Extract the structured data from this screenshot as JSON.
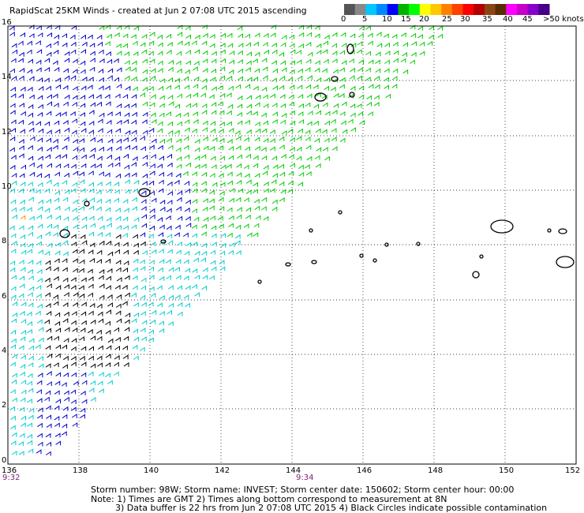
{
  "header": {
    "title": "RapidScat 25KM Winds - created at Jun  2 07:08 UTC 2015 ascending"
  },
  "legend": {
    "colors": [
      "#555555",
      "#888888",
      "#00c8ff",
      "#0088ff",
      "#0000ff",
      "#00b400",
      "#00ff00",
      "#ffff00",
      "#ffc800",
      "#ff8000",
      "#ff4000",
      "#ff0000",
      "#b40000",
      "#8b4513",
      "#5a2d00",
      "#ff00ff",
      "#c800c8",
      "#8800cc",
      "#440088"
    ],
    "labels": [
      "0",
      "5",
      "10",
      "15",
      "20",
      "25",
      "30",
      "35",
      "40",
      "45",
      ">50 knots"
    ]
  },
  "map": {
    "lat_labels": [
      "16",
      "14",
      "12",
      "10",
      "8",
      "6",
      "4",
      "2",
      "0"
    ],
    "lon_labels": [
      "136",
      "138",
      "140",
      "142",
      "144",
      "146",
      "148",
      "150",
      "152"
    ],
    "time_labels": [
      "9:32",
      "9:34"
    ],
    "wind_colors": {
      "calm": "#000000",
      "light": "#00cccc",
      "moderate": "#0000cc",
      "fresh": "#00cc00",
      "strong": "#ff8800"
    }
  },
  "footer": {
    "storm_info": "Storm number: 98W;  Storm name: INVEST;  Storm center date: 150602;  Storm center hour: 00:00",
    "note1": "Note: 1) Times are GMT  2) Times along bottom correspond to measurement at 8N",
    "note2": "3) Data buffer is 22 hrs from Jun  2 07:08 UTC 2015   4) Black Circles indicate possible contamination"
  }
}
